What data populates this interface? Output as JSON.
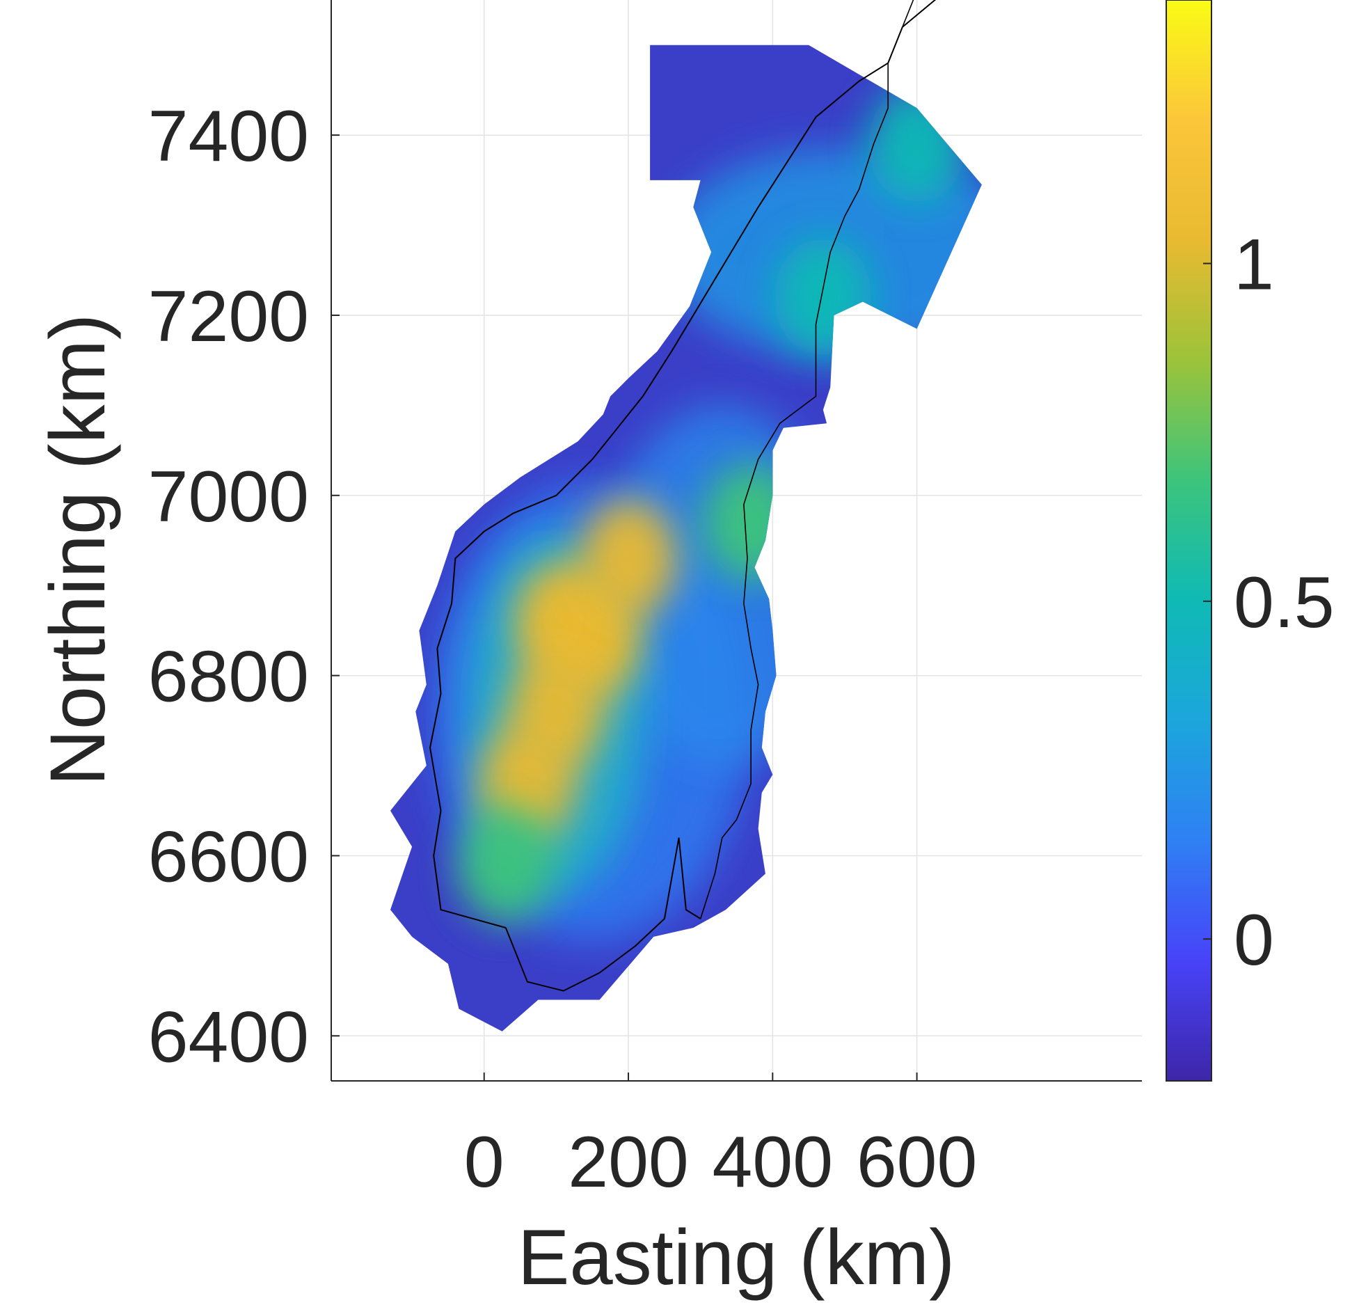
{
  "chart_data": {
    "type": "heatmap",
    "title": "",
    "xlabel": "Easting (km)",
    "ylabel": "Northing (km)",
    "xlim": [
      -212,
      912
    ],
    "ylim": [
      6350,
      7550
    ],
    "x_ticks": [
      0,
      200,
      400,
      600
    ],
    "y_ticks": [
      6400,
      6600,
      6800,
      7000,
      7200,
      7400
    ],
    "x_tick_labels": [
      "0",
      "200",
      "400",
      "600"
    ],
    "y_tick_labels": [
      "6400",
      "6600",
      "6800",
      "7000",
      "7200",
      "7400"
    ],
    "grid": true,
    "colorbar": {
      "range": [
        -0.21,
        1.39
      ],
      "ticks": [
        0,
        0.5,
        1
      ],
      "tick_labels": [
        "0",
        "0.5",
        "1"
      ],
      "colormap": "parula",
      "stops": [
        "#3e26a8",
        "#4743f8",
        "#2f80f3",
        "#1ca6dc",
        "#0fbab5",
        "#3cc47c",
        "#9cc33a",
        "#e9ba31",
        "#fbc63a",
        "#f9fb15"
      ]
    },
    "field_outline_km": [
      [
        230,
        7500
      ],
      [
        450,
        7500
      ],
      [
        600,
        7430
      ],
      [
        690,
        7345
      ],
      [
        600,
        7185
      ],
      [
        525,
        7215
      ],
      [
        485,
        7200
      ],
      [
        480,
        7120
      ],
      [
        470,
        7095
      ],
      [
        475,
        7080
      ],
      [
        415,
        7075
      ],
      [
        400,
        7050
      ],
      [
        400,
        7000
      ],
      [
        390,
        6950
      ],
      [
        375,
        6920
      ],
      [
        395,
        6885
      ],
      [
        400,
        6850
      ],
      [
        405,
        6800
      ],
      [
        390,
        6760
      ],
      [
        385,
        6720
      ],
      [
        400,
        6690
      ],
      [
        385,
        6670
      ],
      [
        380,
        6630
      ],
      [
        390,
        6580
      ],
      [
        335,
        6540
      ],
      [
        290,
        6520
      ],
      [
        235,
        6510
      ],
      [
        160,
        6440
      ],
      [
        75,
        6440
      ],
      [
        25,
        6405
      ],
      [
        -35,
        6430
      ],
      [
        -50,
        6480
      ],
      [
        -100,
        6510
      ],
      [
        -130,
        6540
      ],
      [
        -100,
        6610
      ],
      [
        -130,
        6650
      ],
      [
        -80,
        6700
      ],
      [
        -95,
        6760
      ],
      [
        -80,
        6790
      ],
      [
        -90,
        6850
      ],
      [
        -65,
        6900
      ],
      [
        -40,
        6960
      ],
      [
        0,
        6990
      ],
      [
        50,
        7020
      ],
      [
        130,
        7060
      ],
      [
        165,
        7090
      ],
      [
        175,
        7110
      ],
      [
        200,
        7130
      ],
      [
        240,
        7160
      ],
      [
        285,
        7210
      ],
      [
        315,
        7270
      ],
      [
        290,
        7320
      ],
      [
        300,
        7350
      ],
      [
        230,
        7350
      ]
    ],
    "hotspots": [
      {
        "easting": 150,
        "northing": 6840,
        "value": 1.1
      },
      {
        "easting": 110,
        "northing": 6860,
        "value": 0.95
      },
      {
        "easting": 100,
        "northing": 6760,
        "value": 1.05
      },
      {
        "easting": 60,
        "northing": 6680,
        "value": 1.05
      },
      {
        "easting": 200,
        "northing": 6930,
        "value": 0.95
      },
      {
        "easting": 30,
        "northing": 6590,
        "value": 0.75
      },
      {
        "easting": 370,
        "northing": 6970,
        "value": 0.65
      },
      {
        "easting": 600,
        "northing": 7390,
        "value": 0.5
      },
      {
        "easting": 470,
        "northing": 7220,
        "value": 0.5
      }
    ],
    "outline_label": "coastline and national border"
  }
}
